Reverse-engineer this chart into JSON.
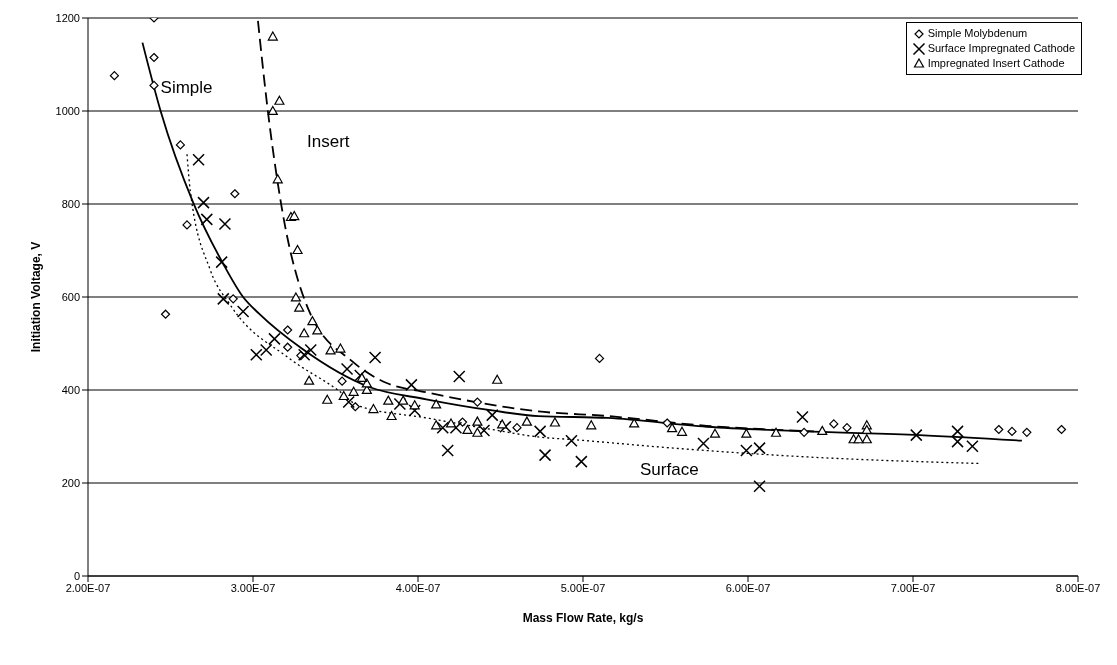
{
  "chart_data": {
    "type": "scatter",
    "xlabel": "Mass Flow Rate, kg/s",
    "ylabel": "Initiation Voltage, V",
    "xlim": [
      2e-07,
      8e-07
    ],
    "xticks": [
      {
        "value": 2e-07,
        "label": "2.00E-07"
      },
      {
        "value": 3e-07,
        "label": "3.00E-07"
      },
      {
        "value": 4e-07,
        "label": "4.00E-07"
      },
      {
        "value": 5e-07,
        "label": "5.00E-07"
      },
      {
        "value": 6e-07,
        "label": "6.00E-07"
      },
      {
        "value": 7e-07,
        "label": "7.00E-07"
      },
      {
        "value": 8e-07,
        "label": "8.00E-07"
      }
    ],
    "ylim": [
      0,
      1200
    ],
    "yticks": [
      0,
      200,
      400,
      600,
      800,
      1000,
      1200
    ],
    "grid": "y",
    "legend": "top right",
    "series": [
      {
        "name": "Simple Molybdenum",
        "marker": "diamond",
        "color": "#000000",
        "x": [
          2.4e-07,
          2.4e-07,
          2.16e-07,
          2.4e-07,
          2.56e-07,
          2.89e-07,
          2.6e-07,
          2.88e-07,
          2.47e-07,
          3.21e-07,
          3.21e-07,
          3.29e-07,
          3.54e-07,
          3.62e-07,
          4.27e-07,
          4.36e-07,
          4.6e-07,
          5.1e-07,
          5.51e-07,
          6.34e-07,
          6.52e-07,
          6.6e-07,
          7.52e-07,
          7.6e-07,
          7.69e-07,
          7.9e-07
        ],
        "values": [
          1200,
          1115,
          1076,
          1055,
          927,
          822,
          755,
          596,
          563,
          529,
          492,
          474,
          419,
          364,
          331,
          374,
          319,
          468,
          329,
          309,
          327,
          319,
          315,
          311,
          309,
          315
        ]
      },
      {
        "name": "Surface Impregnated Cathode",
        "marker": "cross",
        "color": "#000000",
        "x": [
          2.67e-07,
          2.7e-07,
          2.72e-07,
          2.83e-07,
          2.81e-07,
          2.82e-07,
          2.94e-07,
          3.13e-07,
          3.08e-07,
          3.02e-07,
          3.35e-07,
          3.31e-07,
          3.74e-07,
          3.57e-07,
          3.65e-07,
          3.58e-07,
          3.96e-07,
          3.89e-07,
          3.98e-07,
          4.25e-07,
          4.18e-07,
          4.15e-07,
          4.23e-07,
          4.4e-07,
          4.45e-07,
          4.53e-07,
          4.74e-07,
          4.77e-07,
          4.93e-07,
          4.99e-07,
          5.73e-07,
          5.99e-07,
          6.07e-07,
          6.07e-07,
          6.33e-07,
          7.02e-07,
          7.27e-07,
          7.27e-07,
          7.36e-07
        ],
        "values": [
          895,
          803,
          767,
          757,
          675,
          596,
          569,
          510,
          486,
          476,
          486,
          476,
          470,
          445,
          431,
          374,
          411,
          370,
          356,
          429,
          270,
          319,
          319,
          313,
          346,
          321,
          311,
          260,
          291,
          246,
          285,
          270,
          275,
          193,
          342,
          303,
          311,
          289,
          279
        ]
      },
      {
        "name": "Impregnated Insert Cathode",
        "marker": "triangle",
        "color": "#000000",
        "x": [
          3.12e-07,
          3.16e-07,
          3.12e-07,
          3.15e-07,
          3.23e-07,
          3.25e-07,
          3.27e-07,
          3.26e-07,
          3.28e-07,
          3.36e-07,
          3.39e-07,
          3.31e-07,
          3.47e-07,
          3.34e-07,
          3.45e-07,
          3.53e-07,
          3.55e-07,
          3.61e-07,
          3.69e-07,
          3.69e-07,
          3.66e-07,
          3.73e-07,
          3.82e-07,
          3.84e-07,
          3.91e-07,
          3.98e-07,
          4.11e-07,
          4.11e-07,
          4.2e-07,
          4.3e-07,
          4.36e-07,
          4.36e-07,
          4.48e-07,
          4.66e-07,
          4.51e-07,
          4.83e-07,
          5.05e-07,
          5.31e-07,
          5.54e-07,
          5.6e-07,
          5.8e-07,
          5.99e-07,
          6.17e-07,
          6.45e-07,
          6.64e-07,
          6.72e-07,
          6.72e-07,
          6.72e-07,
          6.67e-07
        ],
        "values": [
          1159,
          1021,
          999,
          852,
          771,
          773,
          700,
          598,
          576,
          547,
          527,
          521,
          484,
          419,
          378,
          488,
          386,
          395,
          399,
          413,
          425,
          358,
          376,
          343,
          376,
          366,
          368,
          323,
          327,
          313,
          331,
          307,
          421,
          331,
          325,
          329,
          323,
          327,
          317,
          309,
          305,
          305,
          307,
          311,
          293,
          323,
          313,
          293,
          293
        ]
      },
      {
        "type": "line",
        "marker": "none",
        "line_style": "solid",
        "color": "#000000",
        "x": [
          2.33e-07,
          2.44e-07,
          2.64e-07,
          2.82e-07,
          2.94e-07,
          3.04e-07,
          3.3e-07,
          3.7e-07,
          4.05e-07,
          4.45e-07,
          4.73e-07,
          5.15e-07,
          5.75e-07,
          6.36e-07,
          7.04e-07,
          7.66e-07
        ],
        "values": [
          1147,
          1000,
          801,
          671,
          600,
          563,
          488,
          407,
          380,
          356,
          344,
          340,
          321,
          311,
          303,
          291
        ]
      },
      {
        "type": "line",
        "marker": "none",
        "line_style": "dashed",
        "color": "#000000",
        "x": [
          3.03e-07,
          3.09e-07,
          3.17e-07,
          3.34e-07,
          3.6e-07,
          3.81e-07,
          4.05e-07,
          4.35e-07,
          4.73e-07,
          5.15e-07,
          5.75e-07,
          6.4e-07
        ],
        "values": [
          1194,
          1000,
          801,
          570,
          462,
          415,
          395,
          374,
          354,
          344,
          323,
          311
        ]
      },
      {
        "type": "line",
        "marker": "none",
        "line_style": "dotted",
        "color": "#000000",
        "x": [
          2.6e-07,
          2.62e-07,
          2.74e-07,
          2.86e-07,
          3.22e-07,
          3.51e-07,
          3.64e-07,
          4.05e-07,
          4.45e-07,
          4.73e-07,
          4.95e-07,
          5.55e-07,
          6.36e-07,
          7.4e-07
        ],
        "values": [
          907,
          828,
          659,
          584,
          468,
          401,
          366,
          340,
          315,
          299,
          293,
          275,
          256,
          242
        ]
      }
    ],
    "annotations": [
      {
        "text": "Simple",
        "x": 2.44e-07,
        "y": 1051
      },
      "Insert",
      "Surface"
    ]
  }
}
